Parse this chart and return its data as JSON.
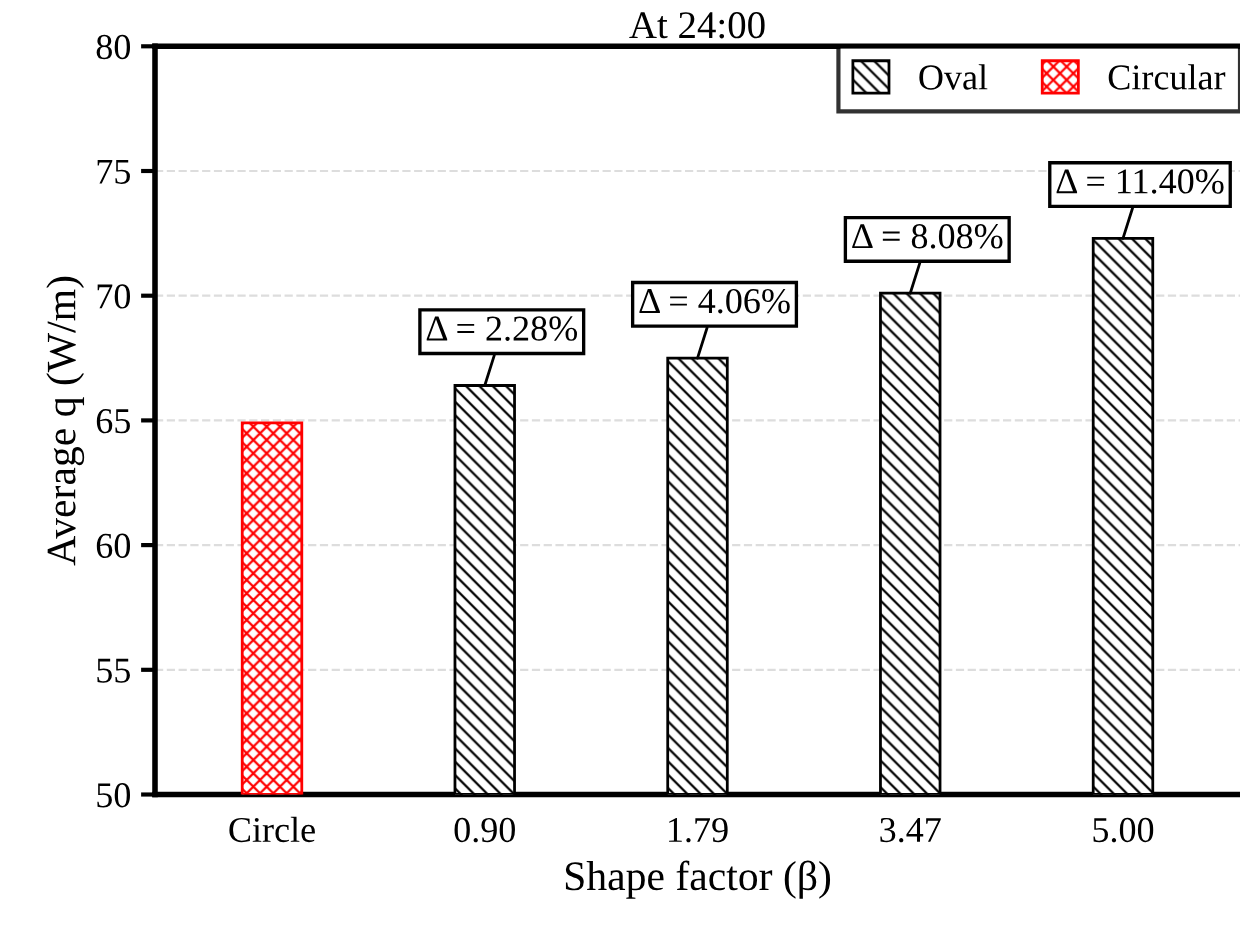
{
  "chart_data": {
    "type": "bar",
    "title": "At 24:00",
    "xlabel": "Shape factor (β)",
    "ylabel": "Average q (W/m)",
    "categories": [
      "Circle",
      "0.90",
      "1.79",
      "3.47",
      "5.00"
    ],
    "series": [
      {
        "name": "Oval",
        "color": "#000000",
        "values": [
          null,
          66.4,
          67.5,
          70.1,
          72.3
        ]
      },
      {
        "name": "Circular",
        "color": "#ff0000",
        "values": [
          64.9,
          null,
          null,
          null,
          null
        ]
      }
    ],
    "ylim": [
      50,
      80
    ],
    "yticks": [
      50,
      55,
      60,
      65,
      70,
      75,
      80
    ],
    "grid": "y",
    "legend": "top right",
    "annotations": [
      {
        "text": "Δ = 2.28%",
        "x": "0.90",
        "y": 66.4
      },
      {
        "text": "Δ = 4.06%",
        "x": "1.79",
        "y": 67.5
      },
      {
        "text": "Δ = 8.08%",
        "x": "3.47",
        "y": 70.1
      },
      {
        "text": "Δ = 11.40%",
        "x": "5.00",
        "y": 72.3
      }
    ]
  }
}
